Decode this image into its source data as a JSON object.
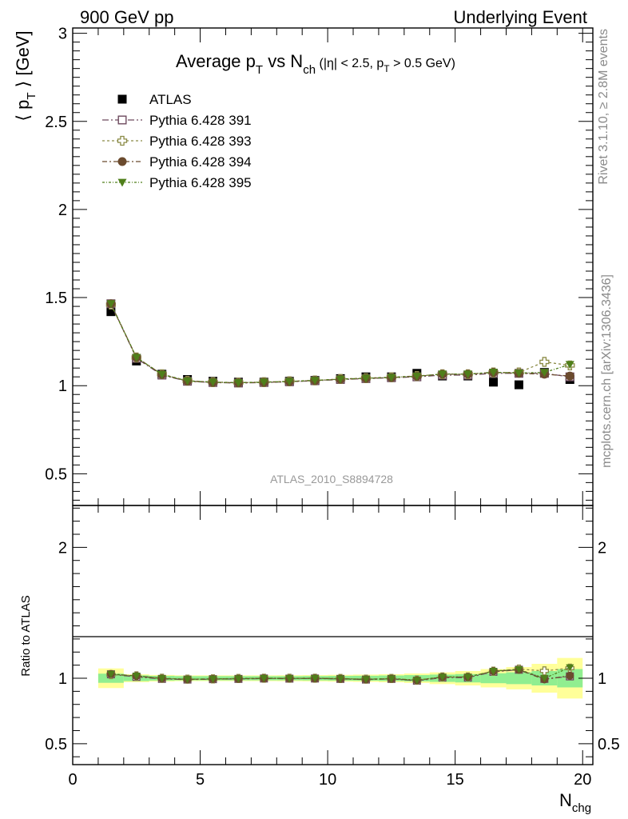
{
  "header": {
    "left": "900 GeV pp",
    "right": "Underlying Event"
  },
  "side_labels": {
    "rivet": "Rivet 3.1.10, ≥ 2.8M events",
    "mcplots": "mcplots.cern.ch [arXiv:1306.3436]"
  },
  "chart_data": [
    {
      "type": "scatter",
      "title_main": "Average p",
      "title_sub1": "T",
      "title_mid": " vs N",
      "title_sub2": "ch",
      "title_cond_a": " (|η| < 2.5, p",
      "title_cond_sub": "T",
      "title_cond_b": " > 0.5 GeV)",
      "ylabel_a": "⟨ p",
      "ylabel_sub": "T",
      "ylabel_b": " ⟩ [GeV]",
      "watermark": "ATLAS_2010_S8894728",
      "xlim": [
        0,
        20.4
      ],
      "ylim": [
        0.32,
        3.03
      ],
      "yticks": [
        "0.5",
        "1",
        "1.5",
        "2",
        "2.5",
        "3"
      ],
      "ytick_values": [
        0.5,
        1,
        1.5,
        2,
        2.5,
        3
      ],
      "legend_position": "top-left",
      "x": [
        1.5,
        2.5,
        3.5,
        4.5,
        5.5,
        6.5,
        7.5,
        8.5,
        9.5,
        10.5,
        11.5,
        12.5,
        13.5,
        14.5,
        15.5,
        16.5,
        17.5,
        18.5,
        19.5
      ],
      "series": [
        {
          "name": "ATLAS",
          "color": "#000000",
          "marker": "square-filled",
          "values": [
            1.42,
            1.14,
            1.065,
            1.035,
            1.025,
            1.02,
            1.02,
            1.025,
            1.03,
            1.04,
            1.05,
            1.05,
            1.07,
            1.055,
            1.055,
            1.02,
            1.005,
            1.075,
            1.035
          ]
        },
        {
          "name": "Pythia 6.428 391",
          "color": "#6e4a5e",
          "marker": "square-open",
          "values": [
            1.465,
            1.155,
            1.06,
            1.025,
            1.018,
            1.015,
            1.018,
            1.022,
            1.028,
            1.035,
            1.04,
            1.045,
            1.05,
            1.06,
            1.06,
            1.07,
            1.07,
            1.07,
            1.05
          ]
        },
        {
          "name": "Pythia 6.428 393",
          "color": "#8b8b46",
          "marker": "cross-open",
          "values": [
            1.46,
            1.16,
            1.065,
            1.028,
            1.02,
            1.018,
            1.02,
            1.025,
            1.03,
            1.038,
            1.043,
            1.048,
            1.055,
            1.065,
            1.065,
            1.075,
            1.075,
            1.135,
            1.115
          ]
        },
        {
          "name": "Pythia 6.428 394",
          "color": "#6b4b2e",
          "marker": "circle-filled",
          "values": [
            1.465,
            1.16,
            1.063,
            1.026,
            1.019,
            1.016,
            1.019,
            1.023,
            1.029,
            1.036,
            1.041,
            1.046,
            1.053,
            1.065,
            1.065,
            1.075,
            1.07,
            1.065,
            1.055
          ]
        },
        {
          "name": "Pythia 6.428 395",
          "color": "#4f7f1a",
          "marker": "triangle-down-filled",
          "values": [
            1.465,
            1.16,
            1.064,
            1.027,
            1.02,
            1.017,
            1.02,
            1.024,
            1.03,
            1.037,
            1.042,
            1.047,
            1.054,
            1.066,
            1.066,
            1.076,
            1.072,
            1.075,
            1.12
          ]
        }
      ]
    },
    {
      "type": "scatter",
      "ylabel": "Ratio to ATLAS",
      "xlabel_a": "N",
      "xlabel_sub": "chg",
      "xlim": [
        0,
        20.4
      ],
      "ylim": [
        0.34,
        2.32
      ],
      "yticks": [
        "0.5",
        "1",
        "2"
      ],
      "ytick_values": [
        0.5,
        1,
        2
      ],
      "xticks": [
        "0",
        "5",
        "10",
        "15",
        "20"
      ],
      "xtick_values": [
        0,
        5,
        10,
        15,
        20
      ],
      "band_color_inner": "#90ee90",
      "band_color_outer": "#ffff99",
      "x_edges": [
        1,
        2,
        3,
        4,
        5,
        6,
        7,
        8,
        9,
        10,
        11,
        12,
        13,
        14,
        15,
        16,
        17,
        18,
        19,
        20
      ],
      "band_inner": [
        0.035,
        0.022,
        0.018,
        0.016,
        0.016,
        0.016,
        0.016,
        0.016,
        0.017,
        0.018,
        0.019,
        0.021,
        0.024,
        0.028,
        0.032,
        0.038,
        0.045,
        0.055,
        0.07
      ],
      "band_outer": [
        0.075,
        0.03,
        0.025,
        0.022,
        0.022,
        0.022,
        0.022,
        0.023,
        0.024,
        0.026,
        0.028,
        0.031,
        0.036,
        0.045,
        0.055,
        0.07,
        0.085,
        0.11,
        0.155
      ],
      "x": [
        1.5,
        2.5,
        3.5,
        4.5,
        5.5,
        6.5,
        7.5,
        8.5,
        9.5,
        10.5,
        11.5,
        12.5,
        13.5,
        14.5,
        15.5,
        16.5,
        17.5,
        18.5,
        19.5
      ],
      "series": [
        {
          "name": "Pythia 6.428 391",
          "color": "#6e4a5e",
          "marker": "square-open",
          "values": [
            1.03,
            1.01,
            0.995,
            0.99,
            0.993,
            0.995,
            0.998,
            0.997,
            0.998,
            0.995,
            0.99,
            0.995,
            0.981,
            1.005,
            1.005,
            1.049,
            1.065,
            0.995,
            1.014
          ]
        },
        {
          "name": "Pythia 6.428 393",
          "color": "#8b8b46",
          "marker": "cross-open",
          "values": [
            1.028,
            1.018,
            1.0,
            0.993,
            0.995,
            0.998,
            1.0,
            1.0,
            1.0,
            0.998,
            0.993,
            0.998,
            0.986,
            1.01,
            1.01,
            1.054,
            1.07,
            1.056,
            1.077
          ]
        },
        {
          "name": "Pythia 6.428 394",
          "color": "#6b4b2e",
          "marker": "circle-filled",
          "values": [
            1.032,
            1.017,
            0.998,
            0.991,
            0.994,
            0.996,
            0.999,
            0.998,
            0.999,
            0.996,
            0.991,
            0.996,
            0.984,
            1.009,
            1.009,
            1.054,
            1.064,
            0.991,
            1.019
          ]
        },
        {
          "name": "Pythia 6.428 395",
          "color": "#4f7f1a",
          "marker": "triangle-down-filled",
          "values": [
            1.032,
            1.018,
            0.999,
            0.992,
            0.995,
            0.997,
            1.0,
            0.999,
            1.0,
            0.997,
            0.992,
            0.997,
            0.985,
            1.01,
            1.01,
            1.055,
            1.067,
            1.0,
            1.082
          ]
        }
      ]
    }
  ]
}
